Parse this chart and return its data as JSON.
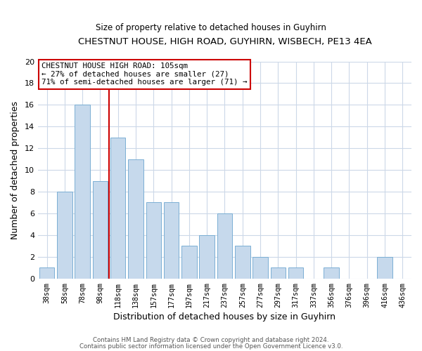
{
  "title": "CHESTNUT HOUSE, HIGH ROAD, GUYHIRN, WISBECH, PE13 4EA",
  "subtitle": "Size of property relative to detached houses in Guyhirn",
  "xlabel": "Distribution of detached houses by size in Guyhirn",
  "ylabel": "Number of detached properties",
  "bar_labels": [
    "38sqm",
    "58sqm",
    "78sqm",
    "98sqm",
    "118sqm",
    "138sqm",
    "157sqm",
    "177sqm",
    "197sqm",
    "217sqm",
    "237sqm",
    "257sqm",
    "277sqm",
    "297sqm",
    "317sqm",
    "337sqm",
    "356sqm",
    "376sqm",
    "396sqm",
    "416sqm",
    "436sqm"
  ],
  "bar_values": [
    1,
    8,
    16,
    9,
    13,
    11,
    7,
    7,
    3,
    4,
    6,
    3,
    2,
    1,
    1,
    0,
    1,
    0,
    0,
    2,
    0
  ],
  "bar_color": "#c6d9ec",
  "bar_edge_color": "#7bafd4",
  "vline_x": 3.5,
  "vline_color": "#cc0000",
  "annotation_line1": "CHESTNUT HOUSE HIGH ROAD: 105sqm",
  "annotation_line2": "← 27% of detached houses are smaller (27)",
  "annotation_line3": "71% of semi-detached houses are larger (71) →",
  "footer1": "Contains HM Land Registry data © Crown copyright and database right 2024.",
  "footer2": "Contains public sector information licensed under the Open Government Licence v3.0.",
  "ylim": [
    0,
    20
  ],
  "yticks": [
    0,
    2,
    4,
    6,
    8,
    10,
    12,
    14,
    16,
    18,
    20
  ],
  "figsize": [
    6.0,
    5.0
  ],
  "dpi": 100
}
